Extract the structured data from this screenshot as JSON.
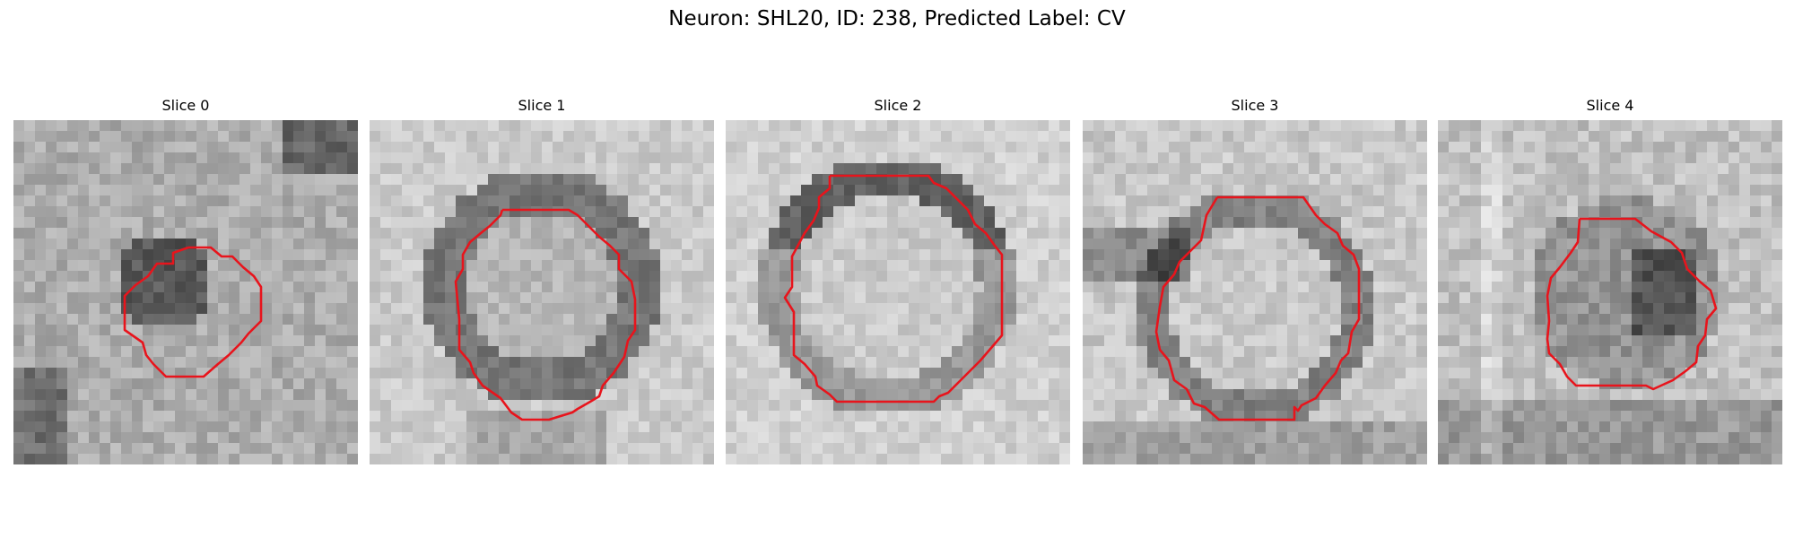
{
  "title": "Neuron: SHL20, ID: 238, Predicted Label: CV",
  "colors": {
    "contour": "#e8141c",
    "background": "#ffffff"
  },
  "slices": [
    {
      "label": "Slice 0",
      "pattern": "mottled-dark-blob"
    },
    {
      "label": "Slice 1",
      "pattern": "dark-ring-bright-center"
    },
    {
      "label": "Slice 2",
      "pattern": "dark-top-ring-bright-center"
    },
    {
      "label": "Slice 3",
      "pattern": "bright-center-dark-left"
    },
    {
      "label": "Slice 4",
      "pattern": "dark-right-mass"
    }
  ]
}
